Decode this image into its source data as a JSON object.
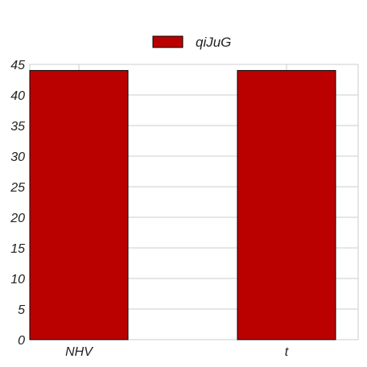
{
  "chart_data": {
    "type": "bar",
    "categories": [
      "NHV",
      "t"
    ],
    "series": [
      {
        "name": "qiJuG",
        "values": [
          44,
          44
        ],
        "color": "#bb0000"
      }
    ],
    "title": "",
    "xlabel": "",
    "ylabel": "",
    "ylim": [
      0,
      45
    ],
    "yticks": [
      "0",
      "5",
      "10",
      "15",
      "20",
      "25",
      "30",
      "35",
      "40",
      "45"
    ],
    "grid": true,
    "legend": "top-center"
  }
}
